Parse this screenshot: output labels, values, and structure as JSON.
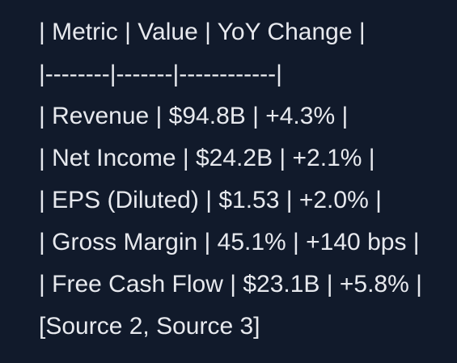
{
  "lines": [
    "| Metric | Value | YoY Change |",
    "|--------|-------|------------|",
    "| Revenue | $94.8B | +4.3% |",
    "| Net Income | $24.2B | +2.1% |",
    "| EPS (Diluted) | $1.53 | +2.0% |",
    "| Gross Margin | 45.1% | +140 bps |",
    "| Free Cash Flow | $23.1B | +5.8% |",
    "[Source 2, Source 3]"
  ],
  "colors": {
    "background": "#111a2b",
    "text": "#e7e9ee"
  }
}
